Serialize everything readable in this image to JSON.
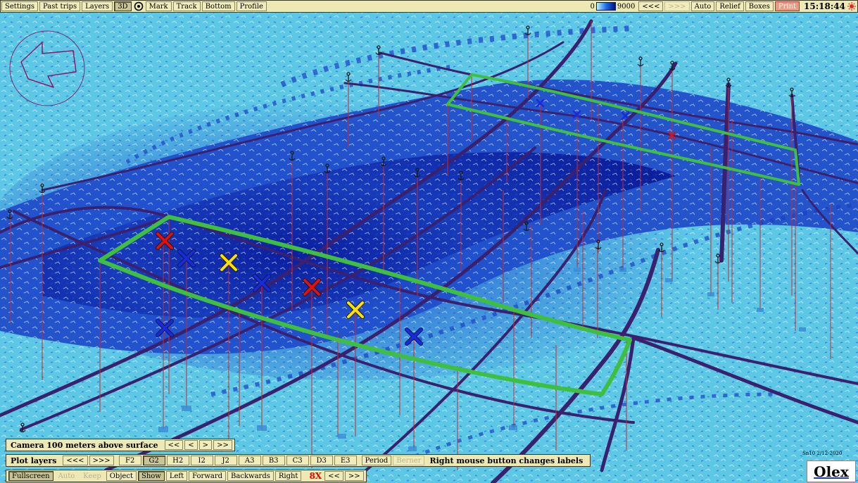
{
  "topbar": {
    "settings": "Settings",
    "past_trips": "Past trips",
    "layers": "Layers",
    "mode_3d": "3D",
    "mark": "Mark",
    "track": "Track",
    "bottom": "Bottom",
    "profile": "Profile",
    "depth_min": "0",
    "depth_max": "9000",
    "back": "<<<",
    "forward": ">>>",
    "auto": "Auto",
    "relief": "Relief",
    "boxes": "Boxes",
    "print": "Print",
    "clock": "15:18:44"
  },
  "camera_bar": {
    "label": "Camera 100 meters above surface",
    "b1": "<<",
    "b2": "<",
    "b3": ">",
    "b4": ">>"
  },
  "plot_bar": {
    "label": "Plot layers",
    "prev": "<<<",
    "next": ">>>",
    "layers": [
      "F2",
      "G2",
      "H2",
      "I2",
      "J2",
      "A3",
      "B3",
      "C3",
      "D3",
      "E3"
    ],
    "active_layer": "G2",
    "period": "Period",
    "berner": "Berner",
    "hint": "Right mouse button changes labels"
  },
  "bottom_bar": {
    "fullscreen": "Fullscreen",
    "auto": "Auto",
    "keep": "Keep",
    "object": "Object",
    "show": "Show",
    "left": "Left",
    "forward": "Forward",
    "backwards": "Backwards",
    "right": "Right",
    "speed": "8X",
    "slower": "<<",
    "faster": ">>"
  },
  "brand": "Olex",
  "chart_id": "Sn10 2/12-2020",
  "colors": {
    "sea_shallow": "#5cc8e6",
    "sea_deep": "#0a1ea0",
    "track_line": "#3a2170",
    "route_box": "#3fbf3f",
    "stake_line": "#cc2a2a",
    "mark_red": "#e01010",
    "mark_yellow": "#ffe000",
    "mark_blue": "#1a2ad8"
  },
  "icons": {
    "compass": "compass-arrow-icon",
    "anchor": "anchor-icon",
    "sun": "sun-icon",
    "mode": "circle-dot-icon"
  }
}
